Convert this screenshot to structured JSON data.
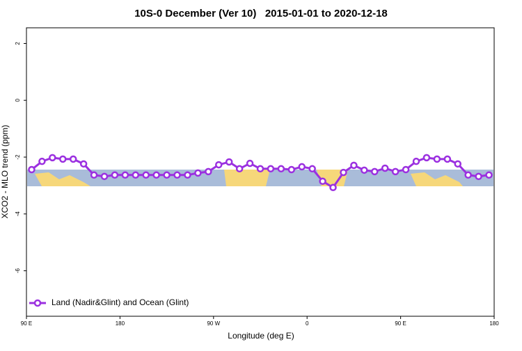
{
  "chart_data": {
    "type": "line",
    "title": "10S-0 December (Ver 10)   2015-01-01 to 2020-12-18",
    "x_label": "Longitude (deg E)",
    "y_label": "XCO2 - MLO trend (ppm)",
    "x": [
      95,
      105,
      115,
      125,
      135,
      145,
      155,
      165,
      175,
      185,
      195,
      205,
      215,
      225,
      235,
      245,
      255,
      265,
      275,
      285,
      295,
      305,
      315,
      325,
      335,
      345,
      355,
      365,
      375,
      385,
      395,
      405,
      415,
      425,
      435,
      445,
      455,
      465,
      475,
      485,
      495,
      505,
      515,
      525,
      535
    ],
    "series": [
      {
        "name": "Land (Nadir&Glint) and Ocean (Glint)",
        "color": "#9b30e0",
        "values": [
          -2.44,
          -2.15,
          -2.02,
          -2.07,
          -2.07,
          -2.24,
          -2.63,
          -2.68,
          -2.63,
          -2.63,
          -2.63,
          -2.63,
          -2.63,
          -2.63,
          -2.63,
          -2.63,
          -2.56,
          -2.51,
          -2.27,
          -2.17,
          -2.41,
          -2.22,
          -2.41,
          -2.41,
          -2.41,
          -2.44,
          -2.34,
          -2.41,
          -2.85,
          -3.07,
          -2.54,
          -2.29,
          -2.46,
          -2.51,
          -2.39,
          -2.51,
          -2.44,
          -2.15,
          -2.02,
          -2.07,
          -2.07,
          -2.24,
          -2.63,
          -2.68,
          -2.63
        ]
      }
    ],
    "xlim": [
      90,
      540
    ],
    "xticks": [
      {
        "value": 90,
        "label": "90 E"
      },
      180,
      {
        "value": 270,
        "label": "90 W"
      },
      {
        "value": 360,
        "label": "0"
      },
      {
        "value": 450,
        "label": "90 E"
      },
      {
        "value": 540,
        "label": "180"
      }
    ],
    "ylim": [
      -7.6,
      2.55
    ],
    "yticks": [
      2,
      0,
      -2,
      -4,
      -6
    ],
    "grid": false,
    "legend": "bottom-left"
  }
}
